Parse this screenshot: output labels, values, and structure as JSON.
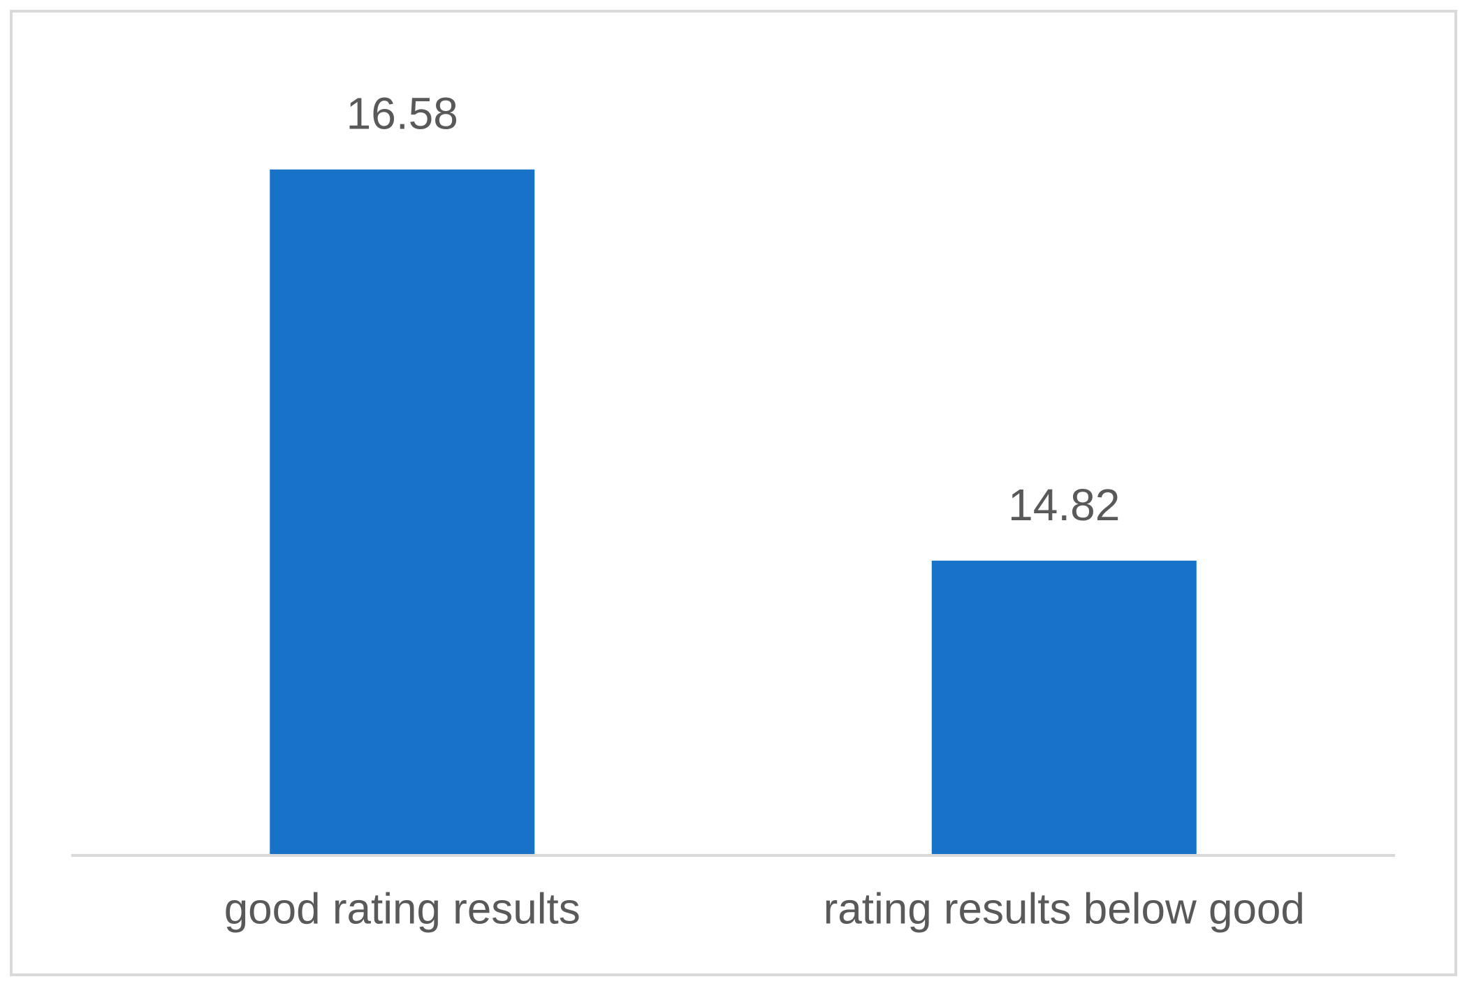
{
  "chart_data": {
    "type": "bar",
    "categories": [
      "good rating results",
      "rating results below good"
    ],
    "values": [
      16.58,
      14.82
    ],
    "color": "#1872c8",
    "ylim": [
      13.5,
      17
    ]
  }
}
